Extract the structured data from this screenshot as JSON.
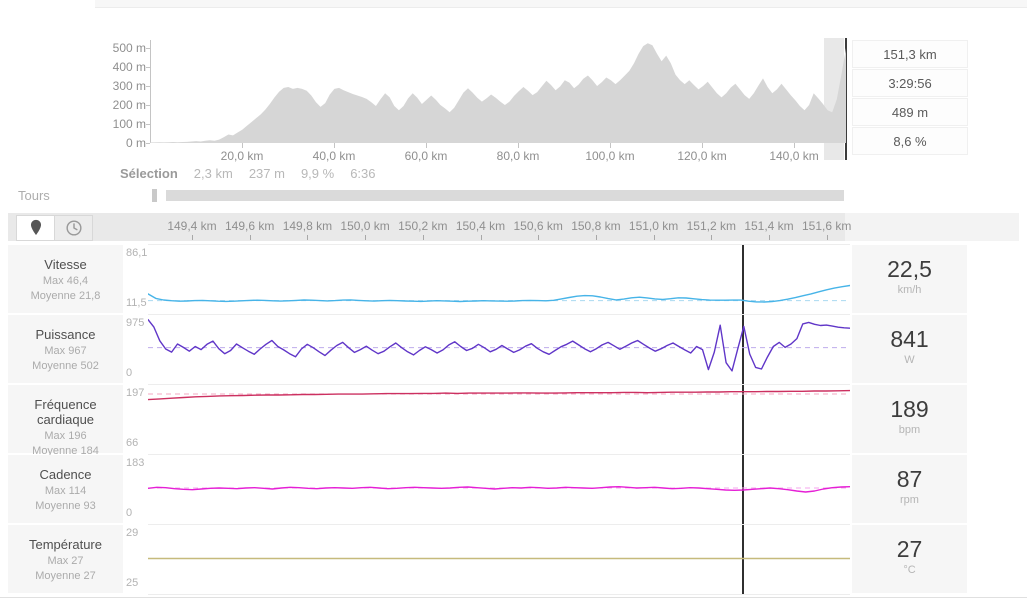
{
  "summary": {
    "stats": [
      "151,3 km",
      "3:29:56",
      "489 m",
      "8,6 %"
    ]
  },
  "selection": {
    "label": "Sélection",
    "values": [
      "2,3 km",
      "237 m",
      "9,9 %",
      "6:36"
    ]
  },
  "tours": {
    "label": "Tours"
  },
  "toolbar": {
    "icons": [
      "map-pin",
      "clock"
    ]
  },
  "axis_km": [
    "149,4 km",
    "149,6 km",
    "149,8 km",
    "150,0 km",
    "150,2 km",
    "150,4 km",
    "150,6 km",
    "150,8 km",
    "151,0 km",
    "151,2 km",
    "151,4 km",
    "151,6 km"
  ],
  "metrics": [
    {
      "title": "Vitesse",
      "max_label": "Max 46,4",
      "avg_label": "Moyenne 21,8",
      "axis_max_label": "86,1",
      "axis_min_label": "11,5",
      "value": "22,5",
      "unit": "km/h"
    },
    {
      "title": "Puissance",
      "max_label": "Max 967",
      "avg_label": "Moyenne 502",
      "axis_max_label": "975",
      "axis_min_label": "0",
      "value": "841",
      "unit": "W"
    },
    {
      "title": "Fréquence cardiaque",
      "max_label": "Max 196",
      "avg_label": "Moyenne 184",
      "axis_max_label": "197",
      "axis_min_label": "66",
      "value": "189",
      "unit": "bpm"
    },
    {
      "title": "Cadence",
      "max_label": "Max 114",
      "avg_label": "Moyenne 93",
      "axis_max_label": "183",
      "axis_min_label": "0",
      "value": "87",
      "unit": "rpm"
    },
    {
      "title": "Température",
      "max_label": "Max 27",
      "avg_label": "Moyenne 27",
      "axis_max_label": "29",
      "axis_min_label": "25",
      "value": "27",
      "unit": "°C"
    }
  ],
  "chart_data": [
    {
      "type": "area",
      "name": "elevation-profile",
      "fill": "#d6d6d6",
      "x_unit": "km",
      "y_unit": "m",
      "x_range": [
        0,
        151.3
      ],
      "y_range": [
        0,
        540
      ],
      "y_ticks": [
        "500 m",
        "400 m",
        "300 m",
        "200 m",
        "100 m",
        "0 m"
      ],
      "x_tick_km": [
        20,
        40,
        60,
        80,
        100,
        120,
        140
      ],
      "x_tick_labels": [
        "20,0 km",
        "40,0 km",
        "60,0 km",
        "80,0 km",
        "100,0 km",
        "120,0 km",
        "140,0 km"
      ],
      "selection_km": [
        149.4,
        151.6
      ],
      "cursor_km": 151.3,
      "values": [
        3,
        3,
        4,
        3,
        4,
        5,
        4,
        5,
        6,
        8,
        10,
        8,
        12,
        15,
        12,
        18,
        30,
        45,
        40,
        55,
        70,
        90,
        110,
        130,
        150,
        175,
        205,
        240,
        270,
        290,
        295,
        285,
        290,
        285,
        275,
        250,
        215,
        190,
        210,
        255,
        285,
        290,
        278,
        268,
        258,
        250,
        242,
        232,
        215,
        195,
        230,
        262,
        240,
        195,
        172,
        195,
        235,
        262,
        238,
        205,
        228,
        250,
        228,
        200,
        182,
        162,
        185,
        225,
        265,
        288,
        265,
        238,
        218,
        235,
        255,
        238,
        218,
        200,
        218,
        248,
        272,
        295,
        275,
        252,
        268,
        298,
        328,
        305,
        278,
        298,
        330,
        318,
        288,
        308,
        338,
        355,
        330,
        300,
        320,
        345,
        330,
        310,
        330,
        355,
        380,
        420,
        470,
        510,
        525,
        515,
        470,
        430,
        460,
        420,
        360,
        330,
        310,
        330,
        305,
        282,
        300,
        322,
        292,
        262,
        240,
        262,
        292,
        312,
        282,
        252,
        232,
        262,
        302,
        340,
        295,
        262,
        282,
        312,
        282,
        252,
        225,
        195,
        172,
        200,
        262,
        235,
        205,
        172,
        162,
        230,
        360,
        500
      ]
    },
    {
      "type": "line",
      "name": "vitesse",
      "color": "#47b4e8",
      "avg_color": "#a9d9f1",
      "y_min": 11.5,
      "y_max": 86.1,
      "avg": 21.8,
      "x_window_km": [
        149.25,
        151.68
      ],
      "cursor_value": 22.5,
      "values": [
        30,
        24.5,
        22.5,
        21.6,
        21.1,
        21.3,
        21.8,
        22,
        21.5,
        21,
        20.8,
        21,
        21.5,
        22,
        22.3,
        22,
        21.5,
        21.2,
        21.5,
        22,
        22.5,
        22.3,
        21.8,
        21.4,
        21.8,
        22.4,
        22.6,
        22,
        21.5,
        21.2,
        21.6,
        22,
        21.7,
        21.3,
        21,
        20.8,
        21.2,
        21.6,
        21.4,
        21,
        20.7,
        21,
        21.3,
        21.6,
        21.4,
        21.2,
        21,
        21.3,
        21.8,
        22,
        21.8,
        21.5,
        22.2,
        23.8,
        25.6,
        27.2,
        27.9,
        27.6,
        26.2,
        24.2,
        22.6,
        23.6,
        25.2,
        25.9,
        25.1,
        23.9,
        23.2,
        24.1,
        25.2,
        25,
        24,
        23,
        22.4,
        22.3,
        22.3,
        22.4,
        22.4,
        21,
        20.2,
        20,
        20.6,
        21.8,
        23.5,
        25.5,
        27.8,
        30,
        32.5,
        35,
        37,
        38.8,
        40.2
      ]
    },
    {
      "type": "line",
      "name": "puissance",
      "color": "#6036c8",
      "avg_color": "#bfaceb",
      "y_min": 0,
      "y_max": 975,
      "avg": 502,
      "x_window_km": [
        149.25,
        151.68
      ],
      "cursor_value": 841,
      "values": [
        950,
        830,
        610,
        480,
        430,
        560,
        505,
        445,
        520,
        470,
        555,
        605,
        485,
        405,
        455,
        560,
        500,
        445,
        395,
        480,
        555,
        615,
        520,
        465,
        405,
        355,
        480,
        555,
        500,
        435,
        375,
        460,
        535,
        585,
        500,
        425,
        470,
        525,
        460,
        405,
        445,
        515,
        575,
        500,
        435,
        385,
        455,
        515,
        470,
        415,
        465,
        545,
        595,
        520,
        455,
        490,
        555,
        500,
        435,
        475,
        535,
        480,
        425,
        465,
        525,
        565,
        490,
        435,
        395,
        455,
        515,
        555,
        605,
        545,
        485,
        435,
        485,
        545,
        585,
        530,
        475,
        525,
        575,
        615,
        555,
        495,
        445,
        485,
        535,
        575,
        520,
        465,
        415,
        520,
        470,
        150,
        430,
        860,
        260,
        130,
        490,
        841,
        400,
        185,
        160,
        350,
        520,
        585,
        505,
        560,
        645,
        880,
        905,
        875,
        855,
        862,
        845,
        828,
        818,
        812
      ]
    },
    {
      "type": "line",
      "name": "frequence-cardiaque",
      "color": "#cc3060",
      "avg_color": "#f3a8c3",
      "y_min": 66,
      "y_max": 197,
      "avg": 184,
      "x_window_km": [
        149.25,
        151.68
      ],
      "cursor_value": 189,
      "values": [
        172,
        173.5,
        175,
        176.5,
        178,
        179,
        180,
        180.5,
        181,
        181.5,
        182,
        182,
        182.5,
        183,
        183,
        183.5,
        184,
        184,
        184,
        184.5,
        185,
        185,
        185,
        185.5,
        185.5,
        186,
        185.5,
        186,
        186,
        186,
        186,
        186.5,
        186.5,
        186,
        186,
        186.5,
        187,
        187,
        187,
        187,
        187.5,
        187.5,
        187,
        187.5,
        188,
        188,
        188,
        188.5,
        188.5,
        189,
        189,
        189,
        189.5,
        189.5,
        190,
        190,
        190.5,
        190.5,
        191,
        191.5
      ]
    },
    {
      "type": "line",
      "name": "cadence",
      "color": "#e51fd5",
      "avg_color": "#f5a4ec",
      "y_min": 0,
      "y_max": 183,
      "avg": 93,
      "x_window_km": [
        149.25,
        151.68
      ],
      "cursor_value": 87,
      "values": [
        92,
        95,
        94,
        91,
        89,
        88,
        90,
        92,
        93,
        92,
        91,
        93,
        94,
        92,
        90,
        93,
        95,
        94,
        92,
        91,
        93,
        94,
        93,
        92,
        94,
        95,
        93,
        91,
        92,
        94,
        95,
        94,
        93,
        92,
        93,
        95,
        96,
        94,
        92,
        90,
        92,
        94,
        93,
        95,
        94,
        92,
        93,
        95,
        94,
        93,
        92,
        94,
        96,
        97,
        95,
        93,
        94,
        95,
        93,
        91,
        92,
        94,
        93,
        91,
        89,
        87,
        86,
        87,
        89,
        91,
        93,
        91,
        88,
        84,
        81,
        84,
        90,
        94,
        96,
        97
      ]
    },
    {
      "type": "line",
      "name": "temperature",
      "color": "#c6ba7c",
      "avg_color": "#d9d2a8",
      "y_min": 25,
      "y_max": 29,
      "avg": 27,
      "x_window_km": [
        149.25,
        151.68
      ],
      "cursor_value": 27,
      "values": [
        27,
        27
      ]
    }
  ]
}
